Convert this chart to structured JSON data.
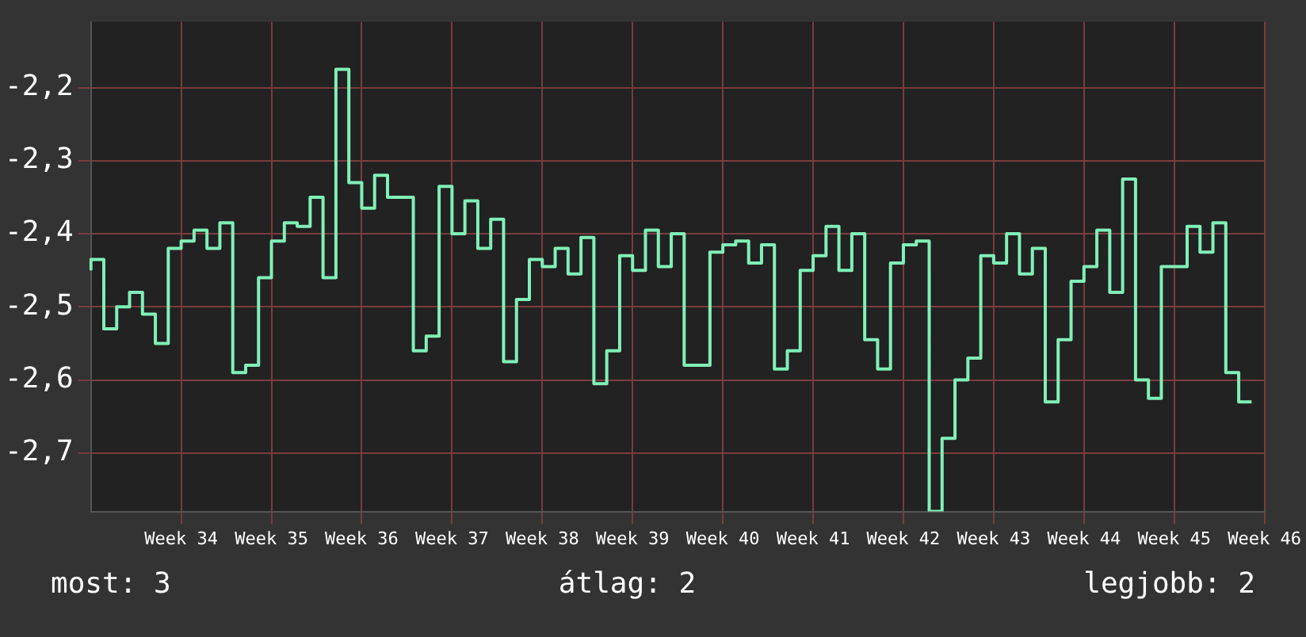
{
  "chart_data": {
    "type": "step",
    "categories": [
      null,
      null,
      null,
      null,
      null,
      null,
      null,
      "Week 34",
      null,
      null,
      null,
      null,
      null,
      null,
      "Week 35",
      null,
      null,
      null,
      null,
      null,
      null,
      "Week 36",
      null,
      null,
      null,
      null,
      null,
      null,
      "Week 37",
      null,
      null,
      null,
      null,
      null,
      null,
      "Week 38",
      null,
      null,
      null,
      null,
      null,
      null,
      "Week 39",
      null,
      null,
      null,
      null,
      null,
      null,
      "Week 40",
      null,
      null,
      null,
      null,
      null,
      null,
      "Week 41",
      null,
      null,
      null,
      null,
      null,
      null,
      "Week 42",
      null,
      null,
      null,
      null,
      null,
      null,
      "Week 43",
      null,
      null,
      null,
      null,
      null,
      null,
      "Week 44",
      null,
      null,
      null,
      null,
      null,
      null,
      "Week 45",
      null,
      null,
      null,
      null,
      null,
      null,
      "Week 46"
    ],
    "series": [
      {
        "color": "#80f0b8",
        "values": [
          -2.45,
          -2.435,
          -2.53,
          -2.5,
          -2.48,
          -2.51,
          -2.55,
          -2.42,
          -2.41,
          -2.395,
          -2.42,
          -2.385,
          -2.59,
          -2.58,
          -2.46,
          -2.41,
          -2.385,
          -2.39,
          -2.35,
          -2.46,
          -2.175,
          -2.33,
          -2.365,
          -2.32,
          -2.35,
          -2.35,
          -2.56,
          -2.54,
          -2.335,
          -2.4,
          -2.355,
          -2.42,
          -2.38,
          -2.575,
          -2.49,
          -2.435,
          -2.445,
          -2.42,
          -2.455,
          -2.405,
          -2.605,
          -2.56,
          -2.43,
          -2.45,
          -2.395,
          -2.445,
          -2.4,
          -2.58,
          -2.58,
          -2.425,
          -2.415,
          -2.41,
          -2.44,
          -2.415,
          -2.585,
          -2.56,
          -2.45,
          -2.43,
          -2.39,
          -2.45,
          -2.4,
          -2.545,
          -2.585,
          -2.44,
          -2.415,
          -2.41,
          -2.78,
          -2.68,
          -2.6,
          -2.57,
          -2.43,
          -2.44,
          -2.4,
          -2.455,
          -2.42,
          -2.63,
          -2.545,
          -2.465,
          -2.445,
          -2.395,
          -2.48,
          -2.325,
          -2.6,
          -2.625,
          -2.445,
          -2.445,
          -2.39,
          -2.425,
          -2.385,
          -2.59,
          -2.63,
          null
        ]
      }
    ],
    "ylim": [
      -2.78,
      -2.11
    ],
    "yticks": [
      {
        "value": -2.7,
        "label": "-2,7"
      },
      {
        "value": -2.6,
        "label": "-2,6"
      },
      {
        "value": -2.5,
        "label": "-2,5"
      },
      {
        "value": -2.4,
        "label": "-2,4"
      },
      {
        "value": -2.3,
        "label": "-2,3"
      },
      {
        "value": -2.2,
        "label": "-2,2"
      }
    ],
    "grid": true,
    "legend": false,
    "annotations": [
      "most: 3",
      "átlag: 2",
      "legjobb: 2"
    ]
  }
}
